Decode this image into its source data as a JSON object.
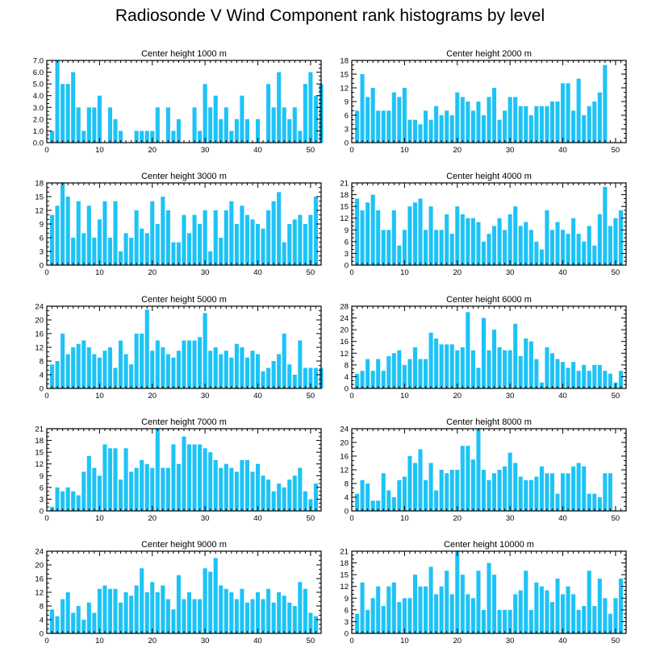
{
  "page": {
    "title": "Radiosonde V Wind Component rank histograms by level"
  },
  "colors": {
    "bar": "#1ec3f5",
    "axis": "#000000"
  },
  "chart_data": [
    {
      "type": "bar",
      "title": "Center height 1000 m",
      "xlim": [
        0,
        52
      ],
      "ylim": [
        0,
        7
      ],
      "yticks": [
        "0.0",
        "1.0",
        "2.0",
        "3.0",
        "4.0",
        "5.0",
        "6.0",
        "7.0"
      ],
      "xticks": [
        0,
        10,
        20,
        30,
        40,
        50
      ],
      "values": [
        1,
        7,
        5,
        5,
        6,
        3,
        1,
        3,
        3,
        4,
        0,
        3,
        2,
        1,
        0,
        0,
        1,
        1,
        1,
        1,
        3,
        0,
        3,
        1,
        2,
        0,
        0,
        3,
        1,
        5,
        3,
        4,
        2,
        3,
        1,
        2,
        4,
        2,
        0,
        2,
        0,
        5,
        3,
        6,
        3,
        2,
        3,
        1,
        5,
        6,
        4,
        5
      ]
    },
    {
      "type": "bar",
      "title": "Center height 2000 m",
      "xlim": [
        0,
        52
      ],
      "ylim": [
        0,
        18
      ],
      "yticks": [
        "0",
        "3",
        "6",
        "9",
        "12",
        "15",
        "18"
      ],
      "xticks": [
        0,
        10,
        20,
        30,
        40,
        50
      ],
      "values": [
        7,
        15,
        10,
        12,
        7,
        7,
        7,
        11,
        10,
        12,
        5,
        5,
        4,
        7,
        5,
        8,
        6,
        7,
        6,
        11,
        10,
        9,
        7,
        9,
        6,
        10,
        12,
        5,
        7,
        10,
        10,
        8,
        8,
        6,
        8,
        8,
        8,
        9,
        9,
        13,
        13,
        7,
        14,
        6,
        8,
        9,
        11,
        17,
        0,
        0,
        0,
        0
      ]
    },
    {
      "type": "bar",
      "title": "Center height 3000 m",
      "xlim": [
        0,
        52
      ],
      "ylim": [
        0,
        18
      ],
      "yticks": [
        "0",
        "3",
        "6",
        "9",
        "12",
        "15",
        "18"
      ],
      "xticks": [
        0,
        10,
        20,
        30,
        40,
        50
      ],
      "values": [
        11,
        13,
        18,
        15,
        6,
        14,
        7,
        13,
        6,
        10,
        14,
        6,
        14,
        3,
        7,
        6,
        12,
        8,
        7,
        14,
        9,
        15,
        12,
        5,
        5,
        11,
        7,
        11,
        9,
        12,
        3,
        12,
        6,
        12,
        14,
        9,
        13,
        11,
        10,
        9,
        8,
        12,
        14,
        16,
        5,
        9,
        10,
        11,
        9,
        11,
        15,
        0
      ]
    },
    {
      "type": "bar",
      "title": "Center height 4000 m",
      "xlim": [
        0,
        52
      ],
      "ylim": [
        0,
        21
      ],
      "yticks": [
        "0",
        "3",
        "6",
        "9",
        "12",
        "15",
        "18",
        "21"
      ],
      "xticks": [
        0,
        10,
        20,
        30,
        40,
        50
      ],
      "values": [
        17,
        14,
        16,
        18,
        14,
        9,
        9,
        14,
        5,
        9,
        15,
        16,
        17,
        9,
        15,
        9,
        9,
        13,
        8,
        15,
        13,
        12,
        12,
        11,
        6,
        8,
        10,
        12,
        9,
        13,
        15,
        10,
        11,
        9,
        6,
        4,
        14,
        9,
        11,
        9,
        8,
        12,
        8,
        6,
        10,
        5,
        13,
        20,
        10,
        12,
        14,
        0
      ]
    },
    {
      "type": "bar",
      "title": "Center height 5000 m",
      "xlim": [
        0,
        52
      ],
      "ylim": [
        0,
        24
      ],
      "yticks": [
        "0",
        "4",
        "8",
        "12",
        "16",
        "20",
        "24"
      ],
      "xticks": [
        0,
        10,
        20,
        30,
        40,
        50
      ],
      "values": [
        7,
        8,
        16,
        10,
        12,
        13,
        14,
        12,
        10,
        9,
        11,
        12,
        6,
        14,
        10,
        7,
        16,
        16,
        23,
        11,
        14,
        12,
        10,
        9,
        11,
        14,
        14,
        14,
        15,
        22,
        11,
        12,
        10,
        11,
        9,
        13,
        12,
        9,
        11,
        10,
        5,
        6,
        8,
        10,
        16,
        7,
        4,
        14,
        6,
        6,
        6,
        6
      ]
    },
    {
      "type": "bar",
      "title": "Center height 6000 m",
      "xlim": [
        0,
        52
      ],
      "ylim": [
        0,
        28
      ],
      "yticks": [
        "0",
        "4",
        "8",
        "12",
        "16",
        "20",
        "24",
        "28"
      ],
      "xticks": [
        0,
        10,
        20,
        30,
        40,
        50
      ],
      "values": [
        5,
        6,
        10,
        6,
        10,
        6,
        11,
        12,
        13,
        8,
        10,
        14,
        10,
        10,
        19,
        17,
        15,
        15,
        15,
        13,
        14,
        26,
        13,
        7,
        24,
        13,
        20,
        14,
        13,
        13,
        22,
        11,
        17,
        16,
        10,
        2,
        14,
        12,
        10,
        9,
        7,
        9,
        6,
        8,
        6,
        8,
        8,
        6,
        5,
        2,
        6,
        0
      ]
    },
    {
      "type": "bar",
      "title": "Center height 7000 m",
      "xlim": [
        0,
        52
      ],
      "ylim": [
        0,
        21
      ],
      "yticks": [
        "0",
        "3",
        "6",
        "9",
        "12",
        "15",
        "18",
        "21"
      ],
      "xticks": [
        0,
        10,
        20,
        30,
        40,
        50
      ],
      "values": [
        1,
        6,
        5,
        6,
        5,
        4,
        10,
        14,
        11,
        9,
        17,
        16,
        16,
        8,
        16,
        10,
        11,
        13,
        12,
        11,
        21,
        11,
        11,
        17,
        12,
        19,
        17,
        17,
        17,
        16,
        15,
        13,
        11,
        12,
        11,
        10,
        13,
        13,
        10,
        12,
        9,
        8,
        5,
        7,
        6,
        8,
        9,
        11,
        5,
        3,
        7,
        0
      ]
    },
    {
      "type": "bar",
      "title": "Center height 8000 m",
      "xlim": [
        0,
        52
      ],
      "ylim": [
        0,
        24
      ],
      "yticks": [
        "0",
        "4",
        "8",
        "12",
        "16",
        "20",
        "24"
      ],
      "xticks": [
        0,
        10,
        20,
        30,
        40,
        50
      ],
      "values": [
        5,
        9,
        8,
        3,
        3,
        11,
        6,
        4,
        9,
        10,
        16,
        14,
        18,
        9,
        14,
        6,
        12,
        11,
        12,
        12,
        19,
        19,
        15,
        24,
        12,
        9,
        11,
        12,
        13,
        17,
        14,
        10,
        9,
        9,
        10,
        13,
        11,
        11,
        5,
        11,
        11,
        13,
        14,
        13,
        5,
        5,
        4,
        11,
        11,
        0,
        0,
        0
      ]
    },
    {
      "type": "bar",
      "title": "Center height 9000 m",
      "xlim": [
        0,
        52
      ],
      "ylim": [
        0,
        24
      ],
      "yticks": [
        "0",
        "4",
        "8",
        "12",
        "16",
        "20",
        "24"
      ],
      "xticks": [
        0,
        10,
        20,
        30,
        40,
        50
      ],
      "values": [
        7,
        5,
        10,
        12,
        6,
        8,
        4,
        9,
        6,
        13,
        14,
        13,
        13,
        9,
        12,
        11,
        14,
        19,
        12,
        15,
        12,
        14,
        10,
        7,
        17,
        10,
        12,
        10,
        10,
        19,
        18,
        22,
        14,
        13,
        12,
        10,
        13,
        9,
        10,
        12,
        10,
        13,
        9,
        12,
        11,
        9,
        8,
        15,
        13,
        6,
        5,
        0
      ]
    },
    {
      "type": "bar",
      "title": "Center height 10000 m",
      "xlim": [
        0,
        52
      ],
      "ylim": [
        0,
        21
      ],
      "yticks": [
        "0",
        "3",
        "6",
        "9",
        "12",
        "15",
        "18",
        "21"
      ],
      "xticks": [
        0,
        10,
        20,
        30,
        40,
        50
      ],
      "values": [
        5,
        13,
        6,
        9,
        12,
        7,
        12,
        13,
        8,
        9,
        9,
        15,
        12,
        12,
        17,
        10,
        12,
        16,
        10,
        21,
        15,
        10,
        9,
        16,
        6,
        18,
        15,
        6,
        6,
        6,
        10,
        11,
        16,
        6,
        13,
        12,
        11,
        8,
        14,
        10,
        12,
        10,
        6,
        7,
        16,
        7,
        14,
        9,
        5,
        9,
        14,
        0
      ]
    }
  ]
}
